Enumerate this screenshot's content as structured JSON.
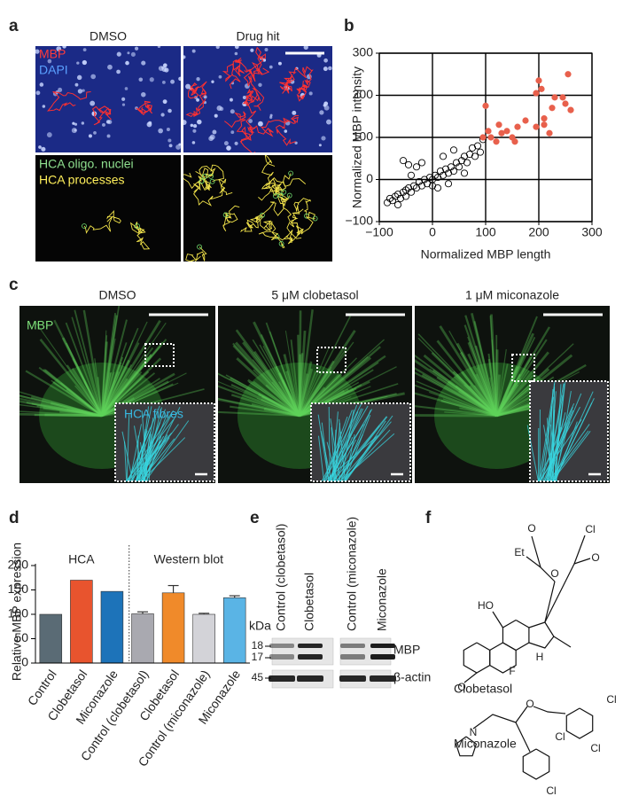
{
  "panel_a": {
    "label": "a",
    "columns": [
      "DMSO",
      "Drug hit"
    ],
    "stain_labels": [
      "MBP",
      "DAPI"
    ],
    "hca_labels": [
      "HCA oligo. nuclei",
      "HCA processes"
    ]
  },
  "chart_data": [
    {
      "type": "scatter",
      "label": "b",
      "xlabel": "Normalized MBP length",
      "ylabel": "Normalized MBP intensity",
      "xlim": [
        -100,
        300
      ],
      "ylim": [
        -100,
        300
      ],
      "xticks": [
        {
          "value": -100,
          "label": "−100"
        },
        0,
        100,
        200,
        300
      ],
      "yticks": [
        {
          "value": -100,
          "label": "−100"
        },
        0,
        100,
        200,
        300
      ],
      "grid": true,
      "series": [
        {
          "color": "#000000",
          "marker": "open",
          "x": [
            -85,
            -80,
            -75,
            -70,
            -65,
            -60,
            -55,
            -50,
            -50,
            -45,
            -40,
            -35,
            -30,
            -25,
            -20,
            -15,
            -10,
            -5,
            0,
            0,
            5,
            10,
            15,
            20,
            25,
            30,
            35,
            40,
            45,
            50,
            55,
            60,
            65,
            70,
            75,
            80,
            85,
            90,
            -55,
            -45,
            -30,
            -20,
            -40,
            10,
            30,
            60,
            -65,
            20,
            40,
            95
          ],
          "y": [
            -55,
            -45,
            -50,
            -40,
            -35,
            -45,
            -30,
            -25,
            -40,
            -20,
            -30,
            -15,
            -20,
            -5,
            -15,
            0,
            -10,
            5,
            0,
            -15,
            10,
            5,
            20,
            10,
            25,
            15,
            30,
            20,
            40,
            30,
            45,
            55,
            40,
            60,
            75,
            55,
            80,
            65,
            45,
            35,
            30,
            40,
            10,
            -20,
            -10,
            15,
            -60,
            55,
            70,
            95
          ]
        },
        {
          "color": "#e8604c",
          "marker": "filled",
          "x": [
            100,
            105,
            110,
            120,
            125,
            130,
            140,
            150,
            155,
            160,
            175,
            195,
            200,
            205,
            210,
            210,
            220,
            225,
            230,
            245,
            250,
            255,
            260,
            95,
            195
          ],
          "y": [
            175,
            115,
            100,
            90,
            130,
            110,
            115,
            100,
            90,
            125,
            140,
            205,
            235,
            215,
            130,
            145,
            110,
            170,
            195,
            195,
            180,
            250,
            165,
            100,
            125
          ]
        }
      ]
    },
    {
      "type": "bar",
      "label": "d",
      "ylabel": "Relative MBP expression",
      "categories": [
        "Control",
        "Clobetasol",
        "Miconazole",
        "Control (clobetasol)",
        "Clobetasol",
        "Control (miconazole)",
        "Miconazole"
      ],
      "values": [
        100,
        170,
        147,
        101,
        144,
        100,
        134
      ],
      "errors": [
        null,
        null,
        null,
        4,
        15,
        2,
        4
      ],
      "colors": [
        "#5a6b75",
        "#e8542e",
        "#1d73b9",
        "#a9a9b0",
        "#f08a2a",
        "#d3d3d8",
        "#5ab4e5"
      ],
      "ylim": [
        0,
        200
      ],
      "yticks": [
        0,
        50,
        100,
        150,
        200
      ],
      "annotations": [
        "HCA",
        "Western blot"
      ]
    }
  ],
  "panel_c": {
    "label": "c",
    "columns": [
      "DMSO",
      "5 μM clobetasol",
      "1 μM miconazole"
    ],
    "stain_label": "MBP",
    "inset_label": "HCA fibres"
  },
  "panel_e": {
    "label": "e",
    "lanes": [
      "Control (clobetasol)",
      "Clobetasol",
      "Control (miconazole)",
      "Miconazole"
    ],
    "unit": "kDa",
    "markers": [
      18,
      17,
      45
    ],
    "bands": [
      "MBP",
      "β-actin"
    ]
  },
  "panel_f": {
    "label": "f",
    "compounds": [
      {
        "name": "Clobetasol",
        "atoms": [
          "O",
          "HO",
          "F",
          "H",
          "O",
          "O",
          "Et",
          "Cl",
          "O"
        ]
      },
      {
        "name": "Miconazole",
        "atoms": [
          "N",
          "O",
          "Cl",
          "Cl",
          "Cl",
          "Cl"
        ]
      }
    ]
  }
}
